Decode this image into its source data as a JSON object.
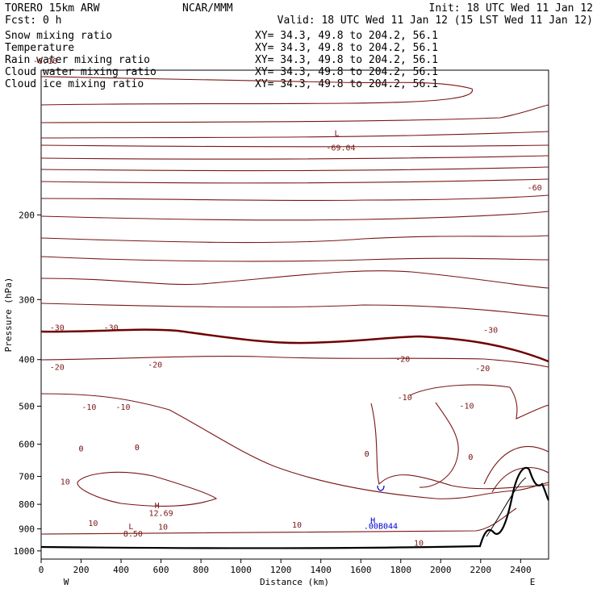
{
  "header": {
    "model": "TORERO  15km ARW",
    "center": "NCAR/MMM",
    "init": "Init: 18 UTC Wed 11 Jan 12",
    "fcst": "Fcst:    0 h",
    "valid": "Valid: 18 UTC Wed 11 Jan 12 (15 LST Wed 11 Jan 12)"
  },
  "fields": [
    {
      "name": "Snow mixing ratio",
      "xy": "XY=  34.3, 49.8 to 204.2, 56.1",
      "color": "#000000"
    },
    {
      "name": "Temperature",
      "xy": "XY=  34.3, 49.8 to 204.2, 56.1",
      "color": "#8b0000"
    },
    {
      "name": "Rain water mixing ratio",
      "xy": "XY=  34.3, 49.8 to 204.2, 56.1",
      "color": "#cc0000"
    },
    {
      "name": "Cloud water mixing ratio",
      "xy": "XY=  34.3, 49.8 to 204.2, 56.1",
      "color": "#0000aa"
    },
    {
      "name": "Cloud ice mixing ratio",
      "xy": "XY=  34.3, 49.8 to 204.2, 56.1",
      "color": "#000000"
    }
  ],
  "chart_data": {
    "type": "line",
    "title": "",
    "xlabel": "Distance (km)",
    "ylabel": "Pressure (hPa)",
    "xlim": [
      0,
      2540
    ],
    "ylim": [
      1040,
      100
    ],
    "y_scale": "log-pressure",
    "x_ticks": [
      0,
      200,
      400,
      600,
      800,
      1000,
      1200,
      1400,
      1600,
      1800,
      2000,
      2200,
      2400
    ],
    "y_ticks": [
      200,
      300,
      400,
      500,
      600,
      700,
      800,
      900,
      1000
    ],
    "x_end_labels": [
      "W",
      "E"
    ],
    "contour_interval_C": 5,
    "colors": {
      "temperature": "#7a1616",
      "zero_isotherm": "#6e0000",
      "terrain": "#000000",
      "cloud_water": "#0000cc"
    },
    "contour_labels": [
      {
        "text": "-69.04",
        "x": 1500,
        "y": 147,
        "color": "#7a1616"
      },
      {
        "text": "L",
        "x": 1480,
        "y": 137,
        "color": "#7a1616"
      },
      {
        "text": "-60",
        "x": 2470,
        "y": 178,
        "color": "#7a1616"
      },
      {
        "text": "-30",
        "x": 80,
        "y": 348,
        "color": "#7a1616"
      },
      {
        "text": "-30",
        "x": 350,
        "y": 348,
        "color": "#7a1616"
      },
      {
        "text": "-30",
        "x": 2250,
        "y": 352,
        "color": "#7a1616"
      },
      {
        "text": "-20",
        "x": 80,
        "y": 420,
        "color": "#7a1616"
      },
      {
        "text": "-20",
        "x": 570,
        "y": 415,
        "color": "#7a1616"
      },
      {
        "text": "-20",
        "x": 1810,
        "y": 404,
        "color": "#7a1616"
      },
      {
        "text": "-20",
        "x": 2210,
        "y": 423,
        "color": "#7a1616"
      },
      {
        "text": "-10",
        "x": 240,
        "y": 509,
        "color": "#7a1616"
      },
      {
        "text": "-10",
        "x": 410,
        "y": 509,
        "color": "#7a1616"
      },
      {
        "text": "-10",
        "x": 1820,
        "y": 486,
        "color": "#7a1616"
      },
      {
        "text": "-10",
        "x": 2130,
        "y": 506,
        "color": "#7a1616"
      },
      {
        "text": "0",
        "x": 200,
        "y": 621,
        "color": "#6e0000"
      },
      {
        "text": "0",
        "x": 480,
        "y": 617,
        "color": "#6e0000"
      },
      {
        "text": "0",
        "x": 1630,
        "y": 637,
        "color": "#6e0000"
      },
      {
        "text": "0",
        "x": 2150,
        "y": 646,
        "color": "#6e0000"
      },
      {
        "text": "10",
        "x": 120,
        "y": 728,
        "color": "#7a1616"
      },
      {
        "text": "10",
        "x": 260,
        "y": 888,
        "color": "#7a1616"
      },
      {
        "text": "10",
        "x": 610,
        "y": 903,
        "color": "#7a1616"
      },
      {
        "text": "10",
        "x": 1280,
        "y": 895,
        "color": "#7a1616"
      },
      {
        "text": "10",
        "x": 1890,
        "y": 975,
        "color": "#7a1616"
      },
      {
        "text": "H",
        "x": 580,
        "y": 815,
        "color": "#7a1616"
      },
      {
        "text": "12.69",
        "x": 600,
        "y": 846,
        "color": "#7a1616"
      },
      {
        "text": "L",
        "x": 450,
        "y": 902,
        "color": "#7a1616"
      },
      {
        "text": "8.50",
        "x": 460,
        "y": 933,
        "color": "#7a1616"
      },
      {
        "text": "-6.16",
        "x": 20,
        "y": 97,
        "color": "#7a1616"
      },
      {
        "text": "H",
        "x": 1660,
        "y": 876,
        "color": "#0000cc"
      },
      {
        "text": ".00B044",
        "x": 1700,
        "y": 900,
        "color": "#0000cc"
      }
    ]
  }
}
